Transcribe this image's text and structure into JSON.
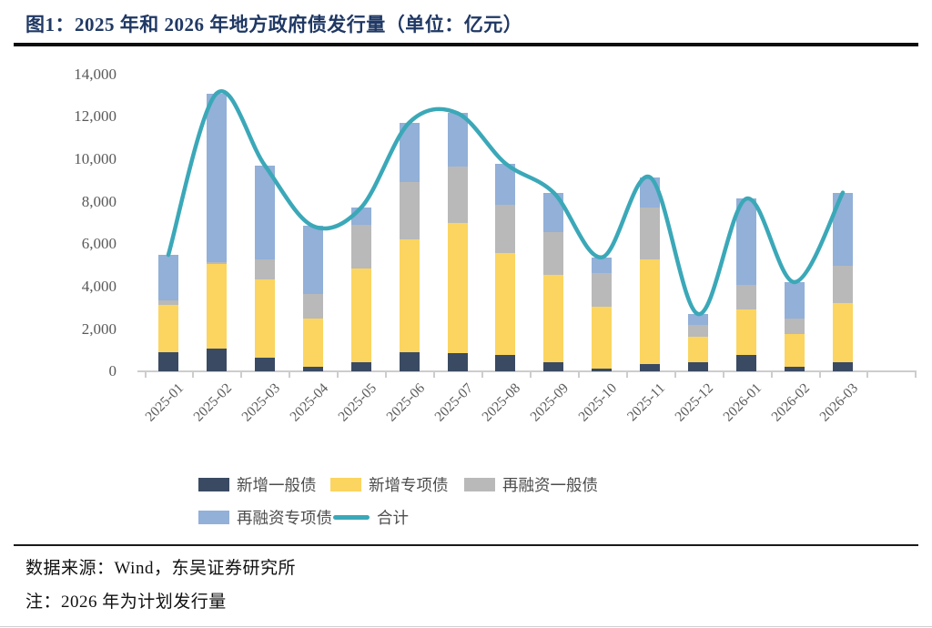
{
  "page": {
    "title": "图1：2025 年和 2026 年地方政府债发行量（单位：亿元）",
    "source": "数据来源：Wind，东吴证券研究所",
    "note": "注：2026 年为计划发行量"
  },
  "colors": {
    "title_text": "#1F3864",
    "axis_text": "#595959",
    "legend_text": "#4D4D4D",
    "axis_line": "#CDCDCD"
  },
  "chart_data": {
    "type": "bar",
    "subtype": "stacked-bar-with-smooth-total-line",
    "title": "图1：2025 年和 2026 年地方政府债发行量（单位：亿元）",
    "xlabel": "",
    "ylabel": "",
    "unit": "亿元",
    "ylim": [
      0,
      14000
    ],
    "yticks": [
      0,
      2000,
      4000,
      6000,
      8000,
      10000,
      12000,
      14000
    ],
    "grid": false,
    "legend_position": "bottom",
    "categories": [
      "2025-01",
      "2025-02",
      "2025-03",
      "2025-04",
      "2025-05",
      "2025-06",
      "2025-07",
      "2025-08",
      "2025-09",
      "2025-10",
      "2025-11",
      "2025-12",
      "2026-01",
      "2026-02",
      "2026-03"
    ],
    "series": [
      {
        "name": "新增一般债",
        "type": "bar",
        "color": "#3A4A63",
        "values": [
          900,
          1100,
          640,
          210,
          430,
          930,
          860,
          790,
          430,
          140,
          360,
          430,
          790,
          215,
          430
        ]
      },
      {
        "name": "新增专项债",
        "type": "bar",
        "color": "#FBD560",
        "values": [
          2250,
          3950,
          3720,
          2290,
          4430,
          5290,
          6140,
          4780,
          4140,
          2930,
          4930,
          1210,
          2140,
          1570,
          2785
        ]
      },
      {
        "name": "再融资一般债",
        "type": "bar",
        "color": "#B9B9B9",
        "values": [
          200,
          120,
          930,
          1140,
          2070,
          2710,
          2650,
          2290,
          2000,
          1575,
          2430,
          570,
          1145,
          715,
          1785
        ]
      },
      {
        "name": "再融资专项债",
        "type": "bar",
        "color": "#92B0D8",
        "values": [
          2150,
          7930,
          4430,
          3220,
          790,
          2795,
          2525,
          1940,
          1855,
          740,
          1430,
          500,
          4070,
          1715,
          3430
        ]
      },
      {
        "name": "合计",
        "type": "line",
        "color": "#3BA8B8",
        "values": [
          5500,
          13100,
          9720,
          6860,
          7720,
          11725,
          12175,
          9800,
          8425,
          5385,
          9150,
          2710,
          8145,
          4215,
          8430
        ]
      }
    ]
  }
}
